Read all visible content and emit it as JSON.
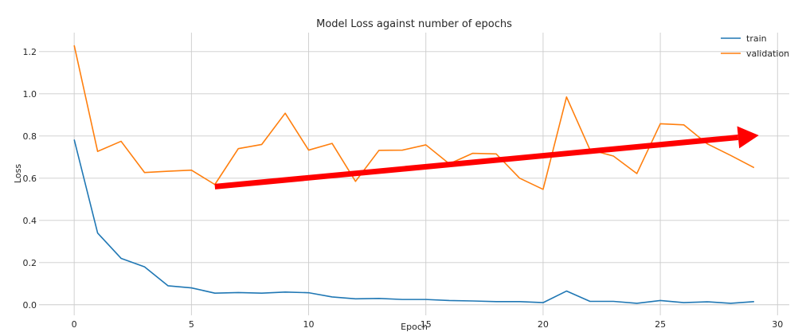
{
  "chart_data": {
    "type": "line",
    "title": "Model Loss against number of epochs",
    "xlabel": "Epoch",
    "ylabel": "Loss",
    "xlim": [
      -1.5,
      30.5
    ],
    "ylim": [
      -0.05,
      1.29
    ],
    "xticks": [
      0,
      5,
      10,
      15,
      20,
      25,
      30
    ],
    "yticks": [
      0.0,
      0.2,
      0.4,
      0.6,
      0.8,
      1.0,
      1.2
    ],
    "xtick_labels": [
      "0",
      "5",
      "10",
      "15",
      "20",
      "25",
      "30"
    ],
    "ytick_labels": [
      "0.0",
      "0.2",
      "0.4",
      "0.6",
      "0.8",
      "1.0",
      "1.2"
    ],
    "grid": true,
    "legend_position": "top-right",
    "x": [
      0,
      1,
      2,
      3,
      4,
      5,
      6,
      7,
      8,
      9,
      10,
      11,
      12,
      13,
      14,
      15,
      16,
      17,
      18,
      19,
      20,
      21,
      22,
      23,
      24,
      25,
      26,
      27,
      28,
      29
    ],
    "series": [
      {
        "name": "train",
        "color": "#1f77b4",
        "values": [
          0.783,
          0.34,
          0.22,
          0.18,
          0.09,
          0.08,
          0.055,
          0.058,
          0.055,
          0.06,
          0.057,
          0.037,
          0.028,
          0.03,
          0.025,
          0.025,
          0.02,
          0.018,
          0.015,
          0.015,
          0.01,
          0.065,
          0.016,
          0.016,
          0.007,
          0.02,
          0.01,
          0.014,
          0.007,
          0.015
        ]
      },
      {
        "name": "validation",
        "color": "#ff7f0e",
        "values": [
          1.23,
          0.727,
          0.775,
          0.627,
          0.633,
          0.638,
          0.57,
          0.74,
          0.76,
          0.908,
          0.733,
          0.765,
          0.585,
          0.732,
          0.733,
          0.758,
          0.668,
          0.718,
          0.715,
          0.6,
          0.547,
          0.985,
          0.735,
          0.705,
          0.622,
          0.858,
          0.853,
          0.763,
          0.708,
          0.65
        ]
      }
    ],
    "annotations": [
      {
        "type": "arrow",
        "color": "#ff0000",
        "from": [
          6,
          0.56
        ],
        "to": [
          29.2,
          0.803
        ]
      }
    ]
  }
}
